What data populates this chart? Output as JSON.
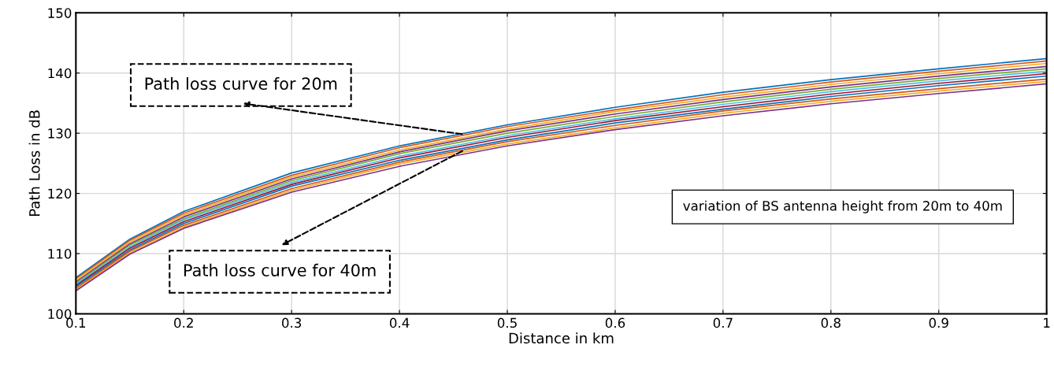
{
  "chart_data": {
    "type": "line",
    "xlabel": "Distance in km",
    "ylabel": "Path Loss in dB",
    "x": [
      0.1,
      0.15,
      0.2,
      0.3,
      0.4,
      0.5,
      0.6,
      0.7,
      0.8,
      0.9,
      1.0
    ],
    "series": [
      {
        "color": "#0072bd",
        "values": [
          106.0,
          112.4,
          117.0,
          123.4,
          127.9,
          131.4,
          134.3,
          136.8,
          138.9,
          140.7,
          142.4
        ]
      },
      {
        "color": "#d95319",
        "values": [
          105.8,
          112.2,
          116.7,
          123.0,
          127.6,
          131.1,
          133.9,
          136.4,
          138.5,
          140.3,
          142.0
        ]
      },
      {
        "color": "#edb120",
        "values": [
          105.6,
          111.9,
          116.4,
          122.7,
          127.2,
          130.7,
          133.6,
          136.0,
          138.1,
          139.9,
          141.6
        ]
      },
      {
        "color": "#7e2f8e",
        "values": [
          105.3,
          111.6,
          116.1,
          122.4,
          126.9,
          130.4,
          133.2,
          135.6,
          137.7,
          139.5,
          141.1
        ]
      },
      {
        "color": "#77ac30",
        "values": [
          105.1,
          111.4,
          115.8,
          122.1,
          126.6,
          130.0,
          132.8,
          135.2,
          137.3,
          139.1,
          140.7
        ]
      },
      {
        "color": "#4dbeee",
        "values": [
          104.9,
          111.1,
          115.6,
          121.8,
          126.2,
          129.6,
          132.4,
          134.8,
          136.9,
          138.7,
          140.3
        ]
      },
      {
        "color": "#a2142f",
        "values": [
          104.7,
          110.9,
          115.3,
          121.5,
          125.9,
          129.3,
          132.1,
          134.4,
          136.5,
          138.3,
          139.9
        ]
      },
      {
        "color": "#0072bd",
        "values": [
          104.5,
          110.6,
          115.0,
          121.2,
          125.5,
          128.9,
          131.7,
          134.0,
          136.1,
          137.9,
          139.5
        ]
      },
      {
        "color": "#d95319",
        "values": [
          104.2,
          110.4,
          114.7,
          120.8,
          125.2,
          128.6,
          131.3,
          133.7,
          135.7,
          137.4,
          139.0
        ]
      },
      {
        "color": "#edb120",
        "values": [
          104.0,
          110.1,
          114.4,
          120.5,
          124.9,
          128.2,
          130.9,
          133.3,
          135.3,
          137.0,
          138.6
        ]
      },
      {
        "color": "#7e2f8e",
        "values": [
          103.8,
          109.9,
          114.2,
          120.2,
          124.5,
          127.9,
          130.6,
          132.9,
          134.9,
          136.6,
          138.2
        ]
      }
    ],
    "xlim": [
      0.1,
      1
    ],
    "ylim": [
      100,
      150
    ],
    "xticks": [
      0.1,
      0.2,
      0.3,
      0.4,
      0.5,
      0.6,
      0.7,
      0.8,
      0.9,
      1
    ],
    "yticks": [
      100,
      110,
      120,
      130,
      140,
      150
    ],
    "grid": true,
    "marker": "none",
    "line_style": "solid",
    "annotations": [
      {
        "text": "Path loss curve for 20m",
        "x": 0.46,
        "y": 129.8
      },
      {
        "text": "Path loss curve for 40m",
        "x": 0.46,
        "y": 127.2
      },
      "variation of BS antenna height from 20m to 40m"
    ]
  }
}
